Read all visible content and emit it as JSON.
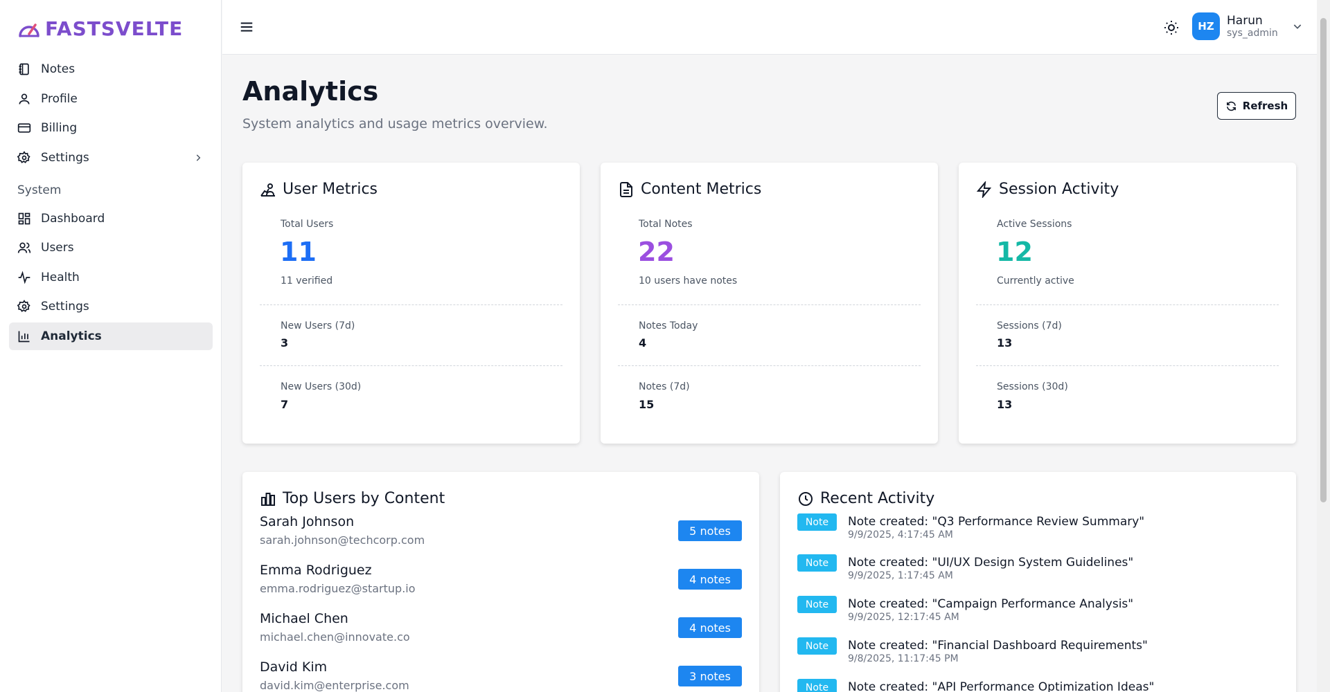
{
  "brand": {
    "name": "FASTSVELTE",
    "color": "#7c4dcc"
  },
  "sidebar": {
    "items": [
      {
        "label": "Notes",
        "icon": "notebook-icon"
      },
      {
        "label": "Profile",
        "icon": "user-icon"
      },
      {
        "label": "Billing",
        "icon": "credit-card-icon"
      },
      {
        "label": "Settings",
        "icon": "gear-icon"
      }
    ],
    "section_label": "System",
    "system_items": [
      {
        "label": "Dashboard",
        "icon": "dashboard-icon"
      },
      {
        "label": "Users",
        "icon": "users-icon"
      },
      {
        "label": "Health",
        "icon": "activity-icon"
      },
      {
        "label": "Settings",
        "icon": "gear-icon"
      },
      {
        "label": "Analytics",
        "icon": "bar-chart-icon",
        "active": true
      }
    ]
  },
  "header": {
    "user": {
      "initials": "HZ",
      "name": "Harun",
      "role": "sys_admin"
    }
  },
  "page": {
    "title": "Analytics",
    "subtitle": "System analytics and usage metrics overview.",
    "refresh_label": "Refresh"
  },
  "cards": {
    "user_metrics": {
      "title": "User Metrics",
      "main_label": "Total Users",
      "main_value": "11",
      "main_sub": "11 verified",
      "color": "#1d6ef5",
      "row1_label": "New Users (7d)",
      "row1_value": "3",
      "row2_label": "New Users (30d)",
      "row2_value": "7"
    },
    "content_metrics": {
      "title": "Content Metrics",
      "main_label": "Total Notes",
      "main_value": "22",
      "main_sub": "10 users have notes",
      "color": "#9b4fe0",
      "row1_label": "Notes Today",
      "row1_value": "4",
      "row2_label": "Notes (7d)",
      "row2_value": "15"
    },
    "session_activity": {
      "title": "Session Activity",
      "main_label": "Active Sessions",
      "main_value": "12",
      "main_sub": "Currently active",
      "color": "#14b8a6",
      "row1_label": "Sessions (7d)",
      "row1_value": "13",
      "row2_label": "Sessions (30d)",
      "row2_value": "13"
    }
  },
  "top_users": {
    "title": "Top Users by Content",
    "rows": [
      {
        "name": "Sarah Johnson",
        "email": "sarah.johnson@techcorp.com",
        "badge": "5 notes"
      },
      {
        "name": "Emma Rodriguez",
        "email": "emma.rodriguez@startup.io",
        "badge": "4 notes"
      },
      {
        "name": "Michael Chen",
        "email": "michael.chen@innovate.co",
        "badge": "4 notes"
      },
      {
        "name": "David Kim",
        "email": "david.kim@enterprise.com",
        "badge": "3 notes"
      }
    ]
  },
  "recent_activity": {
    "title": "Recent Activity",
    "rows": [
      {
        "badge": "Note",
        "text": "Note created: \"Q3 Performance Review Summary\"",
        "time": "9/9/2025, 4:17:45 AM"
      },
      {
        "badge": "Note",
        "text": "Note created: \"UI/UX Design System Guidelines\"",
        "time": "9/9/2025, 1:17:45 AM"
      },
      {
        "badge": "Note",
        "text": "Note created: \"Campaign Performance Analysis\"",
        "time": "9/9/2025, 12:17:45 AM"
      },
      {
        "badge": "Note",
        "text": "Note created: \"Financial Dashboard Requirements\"",
        "time": "9/8/2025, 11:17:45 PM"
      },
      {
        "badge": "Note",
        "text": "Note created: \"API Performance Optimization Ideas\"",
        "time": ""
      }
    ]
  }
}
